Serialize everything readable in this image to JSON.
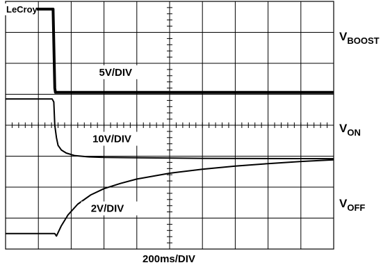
{
  "brand": "LeCroy",
  "timebase": "200ms/DIV",
  "chart_data": {
    "type": "line",
    "grid": true,
    "x_divisions": 10,
    "y_divisions": 8,
    "series": [
      {
        "name": "VBOOST",
        "label_main": "V",
        "label_sub": "BOOST",
        "scale": "5V/DIV",
        "x": [
          0,
          1.45,
          1.45,
          1.5,
          1.52,
          1.55,
          10
        ],
        "y": [
          7.75,
          7.75,
          7.7,
          5.2,
          5.06,
          5.06,
          5.06
        ]
      },
      {
        "name": "VON",
        "label_main": "V",
        "label_sub": "ON",
        "scale": "10V/DIV",
        "x": [
          0,
          1.42,
          1.47,
          1.5,
          1.55,
          1.6,
          1.7,
          1.85,
          2.1,
          2.5,
          3.0,
          4.0,
          6.0,
          10
        ],
        "y": [
          4.85,
          4.85,
          4.75,
          4.0,
          3.6,
          3.35,
          3.2,
          3.1,
          3.02,
          2.98,
          2.96,
          2.95,
          2.93,
          2.92
        ]
      },
      {
        "name": "VOFF",
        "label_main": "V",
        "label_sub": "OFF",
        "scale": "2V/DIV",
        "x": [
          0,
          1.5,
          1.55,
          1.7,
          1.9,
          2.2,
          2.6,
          3.0,
          3.5,
          4.0,
          5.0,
          6.0,
          7.0,
          8.0,
          9.0,
          10
        ],
        "y": [
          0.5,
          0.5,
          0.42,
          0.75,
          1.1,
          1.45,
          1.75,
          1.95,
          2.12,
          2.26,
          2.45,
          2.58,
          2.68,
          2.76,
          2.83,
          2.88
        ]
      }
    ]
  }
}
